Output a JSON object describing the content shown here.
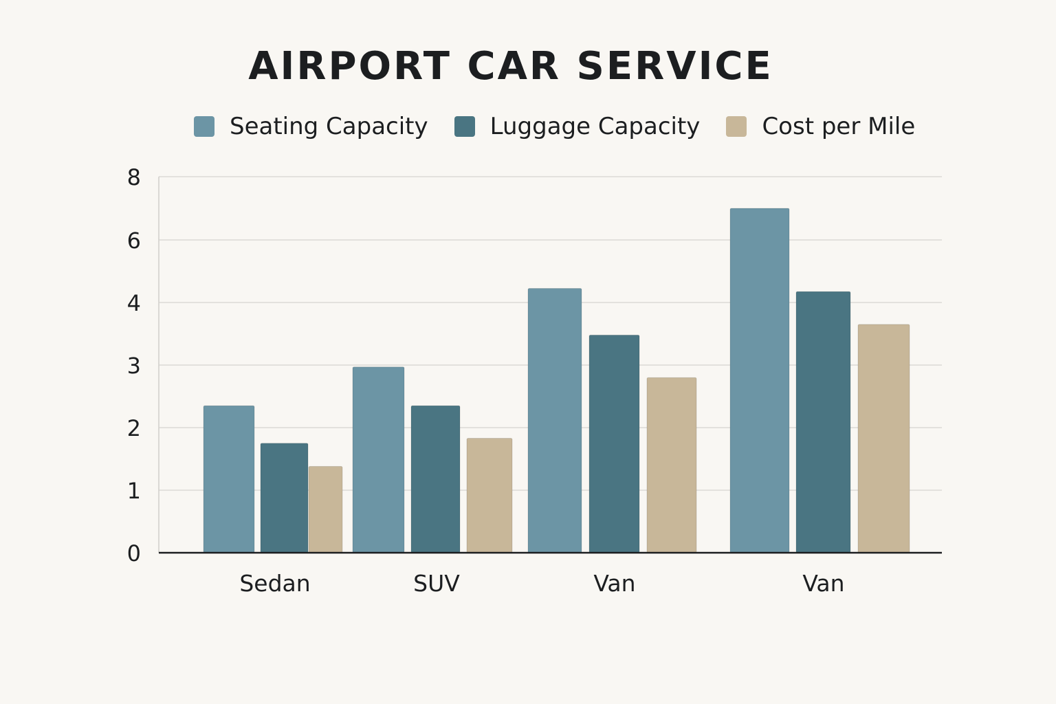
{
  "chart_data": {
    "type": "bar",
    "title": "AIRPORT CAR SERVICE",
    "xlabel": "",
    "ylabel": "",
    "categories": [
      "Sedan",
      "SUV",
      "Van",
      "Van"
    ],
    "series": [
      {
        "name": "Seating Capacity",
        "color": "#6c95a5",
        "values": [
          2.35,
          2.97,
          4.45,
          7.0
        ]
      },
      {
        "name": "Luggage Capacity",
        "color": "#4a7582",
        "values": [
          1.75,
          2.35,
          3.48,
          4.35
        ]
      },
      {
        "name": "Cost per Mile",
        "color": "#c8b799",
        "values": [
          1.38,
          1.83,
          2.8,
          3.65
        ]
      }
    ],
    "y_ticks": [
      "0",
      "1",
      "2",
      "3",
      "4",
      "6",
      "8"
    ],
    "grid": true,
    "legend_position": "top"
  }
}
